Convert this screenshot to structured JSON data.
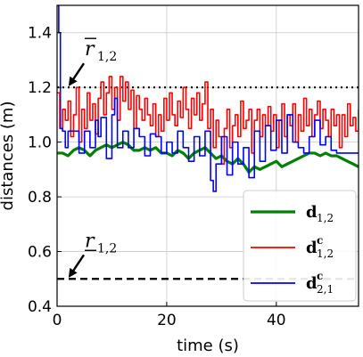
{
  "chart_data": {
    "type": "line",
    "xlabel": "time (s)",
    "ylabel": "distances (m)",
    "xlim": [
      0,
      55
    ],
    "ylim": [
      0.4,
      1.5
    ],
    "x_ticks": [
      0,
      20,
      40
    ],
    "y_ticks": [
      0.4,
      0.6,
      0.8,
      1.0,
      1.2,
      1.4
    ],
    "x_tick_labels": [
      "0",
      "20",
      "40"
    ],
    "y_tick_labels": [
      "0.4",
      "0.6",
      "0.8",
      "1.0",
      "1.2",
      "1.4"
    ],
    "grid": true,
    "legend_position": "bottom-right",
    "reference_lines": [
      {
        "y": 1.2,
        "style": "dotted",
        "color": "#000000",
        "label_main": "r",
        "label_sub": "1,2",
        "bar": "over"
      },
      {
        "y": 0.5,
        "style": "dashed",
        "color": "#000000",
        "label_main": "r",
        "label_sub": "1,2",
        "bar": "under"
      }
    ],
    "series": [
      {
        "name_main": "d",
        "name_sub": "1,2",
        "name_sup": "",
        "color": "#008000",
        "x": [
          0,
          1,
          2,
          3,
          4,
          5,
          6,
          7,
          8,
          9,
          10,
          11,
          12,
          13,
          14,
          15,
          16,
          17,
          18,
          19,
          20,
          21,
          22,
          23,
          24,
          25,
          26,
          27,
          28,
          29,
          30,
          31,
          32,
          33,
          34,
          35,
          36,
          37,
          38,
          39,
          40,
          41,
          42,
          43,
          44,
          45,
          46,
          47,
          48,
          49,
          50,
          51,
          52,
          53,
          54,
          55
        ],
        "y": [
          0.96,
          0.96,
          0.95,
          0.97,
          0.98,
          0.97,
          0.95,
          0.97,
          0.98,
          0.99,
          0.98,
          0.99,
          1.0,
          0.99,
          0.97,
          0.97,
          0.98,
          0.97,
          0.98,
          0.96,
          0.96,
          0.95,
          0.97,
          0.96,
          0.94,
          0.96,
          0.97,
          0.98,
          0.96,
          0.94,
          0.95,
          0.93,
          0.92,
          0.94,
          0.92,
          0.89,
          0.91,
          0.9,
          0.91,
          0.92,
          0.93,
          0.91,
          0.92,
          0.93,
          0.94,
          0.95,
          0.96,
          0.96,
          0.95,
          0.96,
          0.95,
          0.95,
          0.94,
          0.93,
          0.92,
          0.91
        ]
      },
      {
        "name_main": "d",
        "name_sub": "1,2",
        "name_sup": "c",
        "color": "#ff0000",
        "x": [
          0,
          0.5,
          1,
          1.5,
          2,
          2.5,
          3,
          3.5,
          4,
          4.5,
          5,
          5.5,
          6,
          6.5,
          7,
          7.5,
          8,
          8.5,
          9,
          9.5,
          10,
          10.5,
          11,
          11.5,
          12,
          12.5,
          13,
          13.5,
          14,
          14.5,
          15,
          15.5,
          16,
          16.5,
          17,
          17.5,
          18,
          18.5,
          19,
          19.5,
          20,
          20.5,
          21,
          21.5,
          22,
          22.5,
          23,
          23.5,
          24,
          24.5,
          25,
          25.5,
          26,
          26.5,
          27,
          27.5,
          28,
          28.5,
          29,
          29.5,
          30,
          30.5,
          31,
          31.5,
          32,
          32.5,
          33,
          33.5,
          34,
          34.5,
          35,
          35.5,
          36,
          36.5,
          37,
          37.5,
          38,
          38.5,
          39,
          39.5,
          40,
          40.5,
          41,
          41.5,
          42,
          42.5,
          43,
          43.5,
          44,
          44.5,
          45,
          45.5,
          46,
          46.5,
          47,
          47.5,
          48,
          48.5,
          49,
          49.5,
          50,
          50.5,
          51,
          51.5,
          52,
          52.5,
          53,
          53.5,
          54,
          54.5,
          55
        ],
        "y": [
          1.18,
          1.05,
          1.12,
          1.08,
          1.15,
          1.02,
          1.1,
          1.2,
          1.0,
          1.12,
          1.05,
          1.18,
          1.08,
          1.14,
          1.03,
          1.16,
          1.22,
          1.1,
          1.18,
          1.24,
          1.12,
          1.2,
          1.08,
          1.24,
          1.15,
          1.22,
          1.12,
          1.19,
          1.05,
          1.17,
          1.12,
          1.08,
          1.16,
          1.1,
          1.06,
          1.14,
          1.02,
          1.1,
          1.04,
          1.16,
          1.08,
          1.18,
          1.1,
          1.06,
          1.15,
          1.09,
          1.2,
          1.12,
          1.05,
          1.16,
          1.1,
          1.18,
          1.08,
          1.14,
          1.22,
          1.05,
          1.12,
          0.98,
          1.08,
          1.02,
          0.92,
          1.05,
          1.12,
          0.98,
          1.06,
          1.1,
          1.02,
          1.15,
          1.05,
          1.08,
          1.12,
          0.96,
          1.08,
          1.12,
          1.02,
          1.1,
          1.06,
          1.13,
          1.04,
          1.1,
          0.98,
          1.08,
          1.14,
          1.02,
          1.1,
          1.06,
          1.14,
          1.0,
          1.1,
          1.04,
          1.16,
          1.06,
          1.12,
          1.02,
          1.1,
          1.15,
          1.05,
          1.12,
          1.08,
          1.02,
          1.12,
          1.06,
          1.1,
          0.98,
          1.1,
          1.02,
          1.14,
          1.06,
          1.09,
          1.04,
          1.12
        ]
      },
      {
        "name_main": "d",
        "name_sub": "2,1",
        "name_sup": "c",
        "color": "#0000ff",
        "x": [
          0,
          0.3,
          0.6,
          1,
          1.5,
          2,
          3,
          4,
          5,
          6,
          7,
          7.5,
          8,
          9,
          10,
          10.5,
          11,
          12,
          13,
          14,
          15,
          16,
          17,
          18,
          19,
          20,
          21,
          22,
          23,
          24,
          25,
          26,
          27,
          28,
          28.5,
          29,
          30,
          31,
          32,
          33,
          34,
          35,
          36,
          37,
          38,
          39,
          40,
          41,
          42,
          43,
          44,
          45,
          46,
          47,
          48,
          49,
          50,
          51,
          52,
          53,
          54,
          55
        ],
        "y": [
          1.5,
          1.4,
          1.05,
          1.04,
          0.98,
          1.04,
          1.04,
          0.96,
          1.04,
          0.98,
          1.08,
          1.02,
          1.09,
          0.94,
          1.1,
          1.16,
          0.98,
          1.04,
          0.98,
          1.05,
          1.02,
          0.95,
          1.03,
          1.02,
          0.96,
          1.0,
          0.96,
          1.04,
          0.98,
          0.93,
          1.02,
          0.95,
          1.04,
          0.86,
          0.82,
          0.92,
          1.02,
          0.88,
          1.0,
          0.92,
          0.98,
          0.87,
          1.04,
          0.93,
          1.06,
          0.97,
          1.08,
          0.96,
          1.1,
          1.0,
          0.98,
          0.96,
          1.02,
          1.08,
          0.99,
          1.02,
          0.97,
          0.96,
          0.96,
          0.96,
          0.96,
          0.96
        ]
      }
    ]
  }
}
